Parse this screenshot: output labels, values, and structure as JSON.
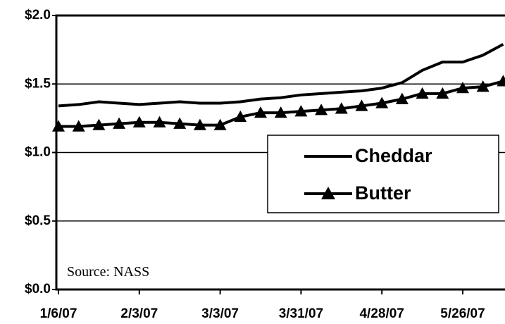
{
  "chart_data": {
    "type": "line",
    "categories": [
      "1/6/07",
      null,
      null,
      null,
      "2/3/07",
      null,
      null,
      null,
      "3/3/07",
      null,
      null,
      null,
      "3/31/07",
      null,
      null,
      null,
      "4/28/07",
      null,
      null,
      null,
      "5/26/07",
      null,
      null
    ],
    "series": [
      {
        "name": "Cheddar",
        "color": "#000000",
        "marker": "none",
        "values": [
          1.34,
          1.35,
          1.37,
          1.36,
          1.35,
          1.36,
          1.37,
          1.36,
          1.36,
          1.37,
          1.39,
          1.4,
          1.42,
          1.43,
          1.44,
          1.45,
          1.47,
          1.51,
          1.6,
          1.66,
          1.66,
          1.71,
          1.79
        ]
      },
      {
        "name": "Butter",
        "color": "#000000",
        "marker": "triangle",
        "values": [
          1.19,
          1.19,
          1.2,
          1.21,
          1.22,
          1.22,
          1.21,
          1.2,
          1.2,
          1.26,
          1.29,
          1.29,
          1.3,
          1.31,
          1.32,
          1.34,
          1.36,
          1.39,
          1.43,
          1.43,
          1.47,
          1.48,
          1.52
        ]
      }
    ],
    "ylim": [
      0,
      2
    ],
    "yticks": [
      {
        "value": 0,
        "label": "$0.0"
      },
      {
        "value": 0.5,
        "label": "$0.5"
      },
      {
        "value": 1,
        "label": "$1.0"
      },
      {
        "value": 1.5,
        "label": "$1.5"
      },
      {
        "value": 2,
        "label": "$2.0"
      }
    ],
    "grid": true,
    "annotation": "Source: NASS"
  }
}
